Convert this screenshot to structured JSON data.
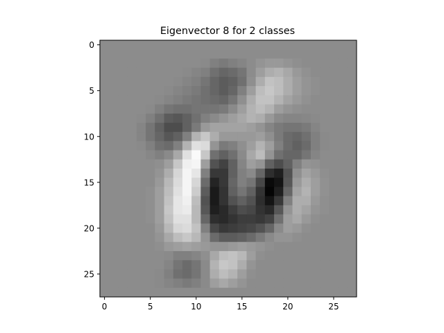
{
  "chart_data": {
    "type": "heatmap",
    "title": "Eigenvector 8 for 2 classes",
    "xlabel": "",
    "ylabel": "",
    "colormap": "gray",
    "x_range": [
      -0.5,
      27.5
    ],
    "y_range": [
      27.5,
      -0.5
    ],
    "x_ticks": [
      0,
      5,
      10,
      15,
      20,
      25
    ],
    "y_ticks": [
      0,
      5,
      10,
      15,
      20,
      25
    ],
    "x_tick_labels": [
      "0",
      "5",
      "10",
      "15",
      "20",
      "25"
    ],
    "y_tick_labels": [
      "0",
      "5",
      "10",
      "15",
      "20",
      "25"
    ],
    "grid": false,
    "rows": 28,
    "cols": 28,
    "background_value": 0.55,
    "values": [
      [
        0.55,
        0.55,
        0.55,
        0.55,
        0.55,
        0.55,
        0.55,
        0.55,
        0.55,
        0.55,
        0.55,
        0.55,
        0.55,
        0.55,
        0.55,
        0.55,
        0.55,
        0.55,
        0.55,
        0.55,
        0.55,
        0.55,
        0.55,
        0.55,
        0.55,
        0.55,
        0.55,
        0.55
      ],
      [
        0.55,
        0.55,
        0.55,
        0.55,
        0.55,
        0.55,
        0.55,
        0.55,
        0.55,
        0.55,
        0.55,
        0.55,
        0.55,
        0.55,
        0.55,
        0.55,
        0.55,
        0.55,
        0.55,
        0.55,
        0.55,
        0.55,
        0.55,
        0.55,
        0.55,
        0.55,
        0.55,
        0.55
      ],
      [
        0.55,
        0.55,
        0.55,
        0.55,
        0.55,
        0.55,
        0.55,
        0.55,
        0.55,
        0.55,
        0.55,
        0.54,
        0.5,
        0.48,
        0.5,
        0.52,
        0.55,
        0.58,
        0.6,
        0.6,
        0.58,
        0.56,
        0.55,
        0.55,
        0.55,
        0.55,
        0.55,
        0.55
      ],
      [
        0.55,
        0.55,
        0.55,
        0.55,
        0.55,
        0.55,
        0.55,
        0.55,
        0.55,
        0.54,
        0.52,
        0.5,
        0.44,
        0.4,
        0.42,
        0.46,
        0.55,
        0.62,
        0.68,
        0.7,
        0.66,
        0.6,
        0.57,
        0.55,
        0.55,
        0.55,
        0.55,
        0.55
      ],
      [
        0.55,
        0.55,
        0.55,
        0.55,
        0.55,
        0.55,
        0.55,
        0.55,
        0.54,
        0.52,
        0.5,
        0.46,
        0.4,
        0.36,
        0.38,
        0.44,
        0.56,
        0.68,
        0.76,
        0.74,
        0.68,
        0.62,
        0.58,
        0.56,
        0.55,
        0.55,
        0.55,
        0.55
      ],
      [
        0.55,
        0.55,
        0.55,
        0.55,
        0.55,
        0.55,
        0.55,
        0.54,
        0.52,
        0.5,
        0.48,
        0.44,
        0.4,
        0.36,
        0.4,
        0.5,
        0.62,
        0.74,
        0.78,
        0.74,
        0.68,
        0.62,
        0.58,
        0.56,
        0.55,
        0.55,
        0.55,
        0.55
      ],
      [
        0.55,
        0.55,
        0.55,
        0.55,
        0.55,
        0.55,
        0.54,
        0.52,
        0.5,
        0.48,
        0.46,
        0.44,
        0.42,
        0.4,
        0.46,
        0.56,
        0.68,
        0.76,
        0.76,
        0.7,
        0.64,
        0.6,
        0.57,
        0.55,
        0.55,
        0.55,
        0.55,
        0.55
      ],
      [
        0.55,
        0.55,
        0.55,
        0.55,
        0.55,
        0.54,
        0.5,
        0.46,
        0.44,
        0.44,
        0.46,
        0.46,
        0.46,
        0.48,
        0.54,
        0.62,
        0.7,
        0.74,
        0.7,
        0.62,
        0.58,
        0.56,
        0.55,
        0.55,
        0.55,
        0.55,
        0.55,
        0.55
      ],
      [
        0.55,
        0.55,
        0.55,
        0.55,
        0.54,
        0.5,
        0.44,
        0.36,
        0.34,
        0.38,
        0.44,
        0.5,
        0.54,
        0.58,
        0.62,
        0.66,
        0.7,
        0.68,
        0.6,
        0.54,
        0.52,
        0.52,
        0.53,
        0.54,
        0.55,
        0.55,
        0.55,
        0.55
      ],
      [
        0.55,
        0.55,
        0.55,
        0.55,
        0.52,
        0.46,
        0.38,
        0.3,
        0.3,
        0.38,
        0.48,
        0.6,
        0.64,
        0.64,
        0.64,
        0.64,
        0.62,
        0.58,
        0.52,
        0.48,
        0.46,
        0.46,
        0.48,
        0.52,
        0.55,
        0.55,
        0.55,
        0.55
      ],
      [
        0.55,
        0.55,
        0.55,
        0.55,
        0.52,
        0.46,
        0.4,
        0.34,
        0.38,
        0.5,
        0.7,
        0.78,
        0.68,
        0.6,
        0.6,
        0.6,
        0.6,
        0.62,
        0.56,
        0.48,
        0.42,
        0.4,
        0.44,
        0.5,
        0.54,
        0.55,
        0.55,
        0.55
      ],
      [
        0.55,
        0.55,
        0.55,
        0.55,
        0.54,
        0.5,
        0.44,
        0.42,
        0.5,
        0.7,
        0.88,
        0.86,
        0.58,
        0.48,
        0.5,
        0.56,
        0.62,
        0.7,
        0.62,
        0.5,
        0.42,
        0.38,
        0.42,
        0.5,
        0.54,
        0.55,
        0.55,
        0.55
      ],
      [
        0.55,
        0.55,
        0.55,
        0.55,
        0.55,
        0.53,
        0.5,
        0.54,
        0.66,
        0.88,
        0.98,
        0.78,
        0.44,
        0.38,
        0.44,
        0.54,
        0.66,
        0.74,
        0.58,
        0.44,
        0.4,
        0.4,
        0.46,
        0.52,
        0.55,
        0.55,
        0.55,
        0.55
      ],
      [
        0.55,
        0.55,
        0.55,
        0.55,
        0.55,
        0.55,
        0.56,
        0.62,
        0.78,
        0.94,
        0.96,
        0.62,
        0.32,
        0.26,
        0.38,
        0.52,
        0.62,
        0.58,
        0.38,
        0.3,
        0.38,
        0.5,
        0.58,
        0.57,
        0.55,
        0.55,
        0.55,
        0.55
      ],
      [
        0.55,
        0.55,
        0.55,
        0.55,
        0.55,
        0.55,
        0.58,
        0.68,
        0.84,
        0.96,
        0.9,
        0.5,
        0.22,
        0.22,
        0.38,
        0.5,
        0.54,
        0.4,
        0.18,
        0.12,
        0.32,
        0.56,
        0.64,
        0.6,
        0.56,
        0.55,
        0.55,
        0.55
      ],
      [
        0.55,
        0.55,
        0.55,
        0.55,
        0.55,
        0.55,
        0.6,
        0.72,
        0.86,
        0.96,
        0.84,
        0.42,
        0.14,
        0.22,
        0.4,
        0.5,
        0.46,
        0.28,
        0.04,
        0.08,
        0.34,
        0.6,
        0.68,
        0.62,
        0.57,
        0.55,
        0.55,
        0.55
      ],
      [
        0.55,
        0.55,
        0.55,
        0.55,
        0.55,
        0.56,
        0.62,
        0.74,
        0.88,
        0.96,
        0.8,
        0.36,
        0.1,
        0.2,
        0.38,
        0.46,
        0.38,
        0.2,
        0.02,
        0.12,
        0.4,
        0.64,
        0.7,
        0.62,
        0.57,
        0.55,
        0.55,
        0.55
      ],
      [
        0.55,
        0.55,
        0.55,
        0.55,
        0.55,
        0.56,
        0.62,
        0.76,
        0.9,
        0.94,
        0.74,
        0.32,
        0.1,
        0.2,
        0.32,
        0.38,
        0.32,
        0.18,
        0.08,
        0.22,
        0.5,
        0.68,
        0.68,
        0.6,
        0.56,
        0.55,
        0.55,
        0.55
      ],
      [
        0.55,
        0.55,
        0.55,
        0.55,
        0.55,
        0.56,
        0.62,
        0.78,
        0.9,
        0.92,
        0.72,
        0.34,
        0.12,
        0.16,
        0.24,
        0.3,
        0.28,
        0.2,
        0.16,
        0.34,
        0.58,
        0.68,
        0.64,
        0.58,
        0.56,
        0.55,
        0.55,
        0.55
      ],
      [
        0.55,
        0.55,
        0.55,
        0.55,
        0.55,
        0.56,
        0.62,
        0.76,
        0.88,
        0.88,
        0.72,
        0.4,
        0.18,
        0.16,
        0.2,
        0.24,
        0.24,
        0.22,
        0.26,
        0.44,
        0.62,
        0.66,
        0.6,
        0.56,
        0.55,
        0.55,
        0.55,
        0.55
      ],
      [
        0.55,
        0.55,
        0.55,
        0.55,
        0.55,
        0.55,
        0.6,
        0.72,
        0.84,
        0.86,
        0.76,
        0.5,
        0.28,
        0.22,
        0.24,
        0.26,
        0.28,
        0.32,
        0.4,
        0.54,
        0.62,
        0.6,
        0.56,
        0.55,
        0.55,
        0.55,
        0.55,
        0.55
      ],
      [
        0.55,
        0.55,
        0.55,
        0.55,
        0.55,
        0.55,
        0.58,
        0.66,
        0.74,
        0.78,
        0.72,
        0.58,
        0.42,
        0.36,
        0.36,
        0.38,
        0.42,
        0.48,
        0.54,
        0.58,
        0.58,
        0.56,
        0.55,
        0.55,
        0.55,
        0.55,
        0.55,
        0.55
      ],
      [
        0.55,
        0.55,
        0.55,
        0.55,
        0.55,
        0.55,
        0.56,
        0.6,
        0.62,
        0.64,
        0.62,
        0.6,
        0.58,
        0.58,
        0.6,
        0.62,
        0.6,
        0.58,
        0.56,
        0.55,
        0.55,
        0.55,
        0.55,
        0.55,
        0.55,
        0.55,
        0.55,
        0.55
      ],
      [
        0.55,
        0.55,
        0.55,
        0.55,
        0.55,
        0.55,
        0.55,
        0.54,
        0.5,
        0.5,
        0.52,
        0.56,
        0.66,
        0.74,
        0.76,
        0.72,
        0.62,
        0.56,
        0.55,
        0.55,
        0.55,
        0.55,
        0.55,
        0.55,
        0.55,
        0.55,
        0.55,
        0.55
      ],
      [
        0.55,
        0.55,
        0.55,
        0.55,
        0.55,
        0.55,
        0.55,
        0.52,
        0.46,
        0.42,
        0.46,
        0.54,
        0.7,
        0.78,
        0.76,
        0.68,
        0.58,
        0.55,
        0.55,
        0.55,
        0.55,
        0.55,
        0.55,
        0.55,
        0.55,
        0.55,
        0.55,
        0.55
      ],
      [
        0.55,
        0.55,
        0.55,
        0.55,
        0.55,
        0.55,
        0.54,
        0.5,
        0.44,
        0.42,
        0.46,
        0.54,
        0.68,
        0.74,
        0.7,
        0.62,
        0.56,
        0.55,
        0.55,
        0.55,
        0.55,
        0.55,
        0.55,
        0.55,
        0.55,
        0.55,
        0.55,
        0.55
      ],
      [
        0.55,
        0.55,
        0.55,
        0.55,
        0.55,
        0.55,
        0.54,
        0.52,
        0.5,
        0.48,
        0.5,
        0.54,
        0.62,
        0.66,
        0.62,
        0.58,
        0.55,
        0.55,
        0.55,
        0.55,
        0.55,
        0.55,
        0.55,
        0.55,
        0.55,
        0.55,
        0.55,
        0.55
      ],
      [
        0.55,
        0.55,
        0.55,
        0.55,
        0.55,
        0.55,
        0.55,
        0.55,
        0.55,
        0.55,
        0.55,
        0.55,
        0.55,
        0.55,
        0.55,
        0.55,
        0.55,
        0.55,
        0.55,
        0.55,
        0.55,
        0.55,
        0.55,
        0.55,
        0.55,
        0.55,
        0.55,
        0.55
      ]
    ]
  }
}
